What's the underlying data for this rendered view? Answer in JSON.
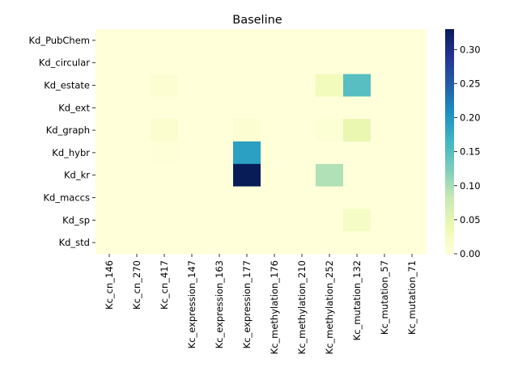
{
  "chart_data": {
    "type": "heatmap",
    "title": "Baseline",
    "xlabel": "",
    "ylabel": "",
    "rows": [
      "Kd_PubChem",
      "Kd_circular",
      "Kd_estate",
      "Kd_ext",
      "Kd_graph",
      "Kd_hybr",
      "Kd_kr",
      "Kd_maccs",
      "Kd_sp",
      "Kd_std"
    ],
    "columns": [
      "Kc_cn_146",
      "Kc_cn_270",
      "Kc_cn_417",
      "Kc_expression_147",
      "Kc_expression_163",
      "Kc_expression_177",
      "Kc_methylation_176",
      "Kc_methylation_210",
      "Kc_methylation_252",
      "Kc_mutation_132",
      "Kc_mutation_57",
      "Kc_mutation_71"
    ],
    "values": [
      [
        0,
        0,
        0,
        0,
        0,
        0,
        0,
        0,
        0,
        0,
        0,
        0
      ],
      [
        0,
        0,
        0,
        0,
        0,
        0,
        0,
        0,
        0,
        0,
        0,
        0
      ],
      [
        0,
        0,
        0.008,
        0,
        0,
        0,
        0,
        0,
        0.03,
        0.15,
        0,
        0
      ],
      [
        0,
        0,
        0,
        0,
        0,
        0,
        0,
        0,
        0,
        0,
        0,
        0
      ],
      [
        0,
        0,
        0.01,
        0,
        0,
        0.008,
        0,
        0,
        0.006,
        0.045,
        0,
        0
      ],
      [
        0,
        0,
        0.002,
        0,
        0,
        0.19,
        0,
        0,
        0,
        0,
        0,
        0
      ],
      [
        0,
        0,
        0,
        0,
        0,
        0.33,
        0,
        0,
        0.095,
        0,
        0,
        0
      ],
      [
        0,
        0,
        0,
        0,
        0,
        0,
        0,
        0,
        0,
        0,
        0,
        0
      ],
      [
        0,
        0,
        0,
        0,
        0,
        0,
        0,
        0,
        0,
        0.02,
        0,
        0
      ],
      [
        0,
        0,
        0,
        0,
        0,
        0,
        0,
        0,
        0,
        0,
        0,
        0
      ]
    ],
    "colorbar": {
      "min": 0,
      "max": 0.33,
      "ticks": [
        "0.00",
        "0.05",
        "0.10",
        "0.15",
        "0.20",
        "0.25",
        "0.30"
      ],
      "colormap": "YlGnBu"
    }
  }
}
